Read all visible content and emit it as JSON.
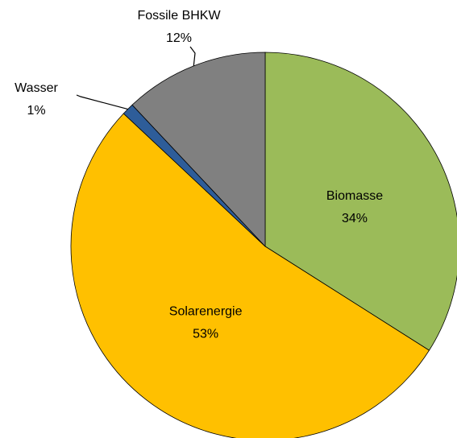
{
  "chart_data": {
    "type": "pie",
    "categories": [
      "Biomasse",
      "Solarenergie",
      "Wasser",
      "Fossile BHKW"
    ],
    "values": [
      34,
      53,
      1,
      12
    ],
    "value_labels": [
      "34%",
      "53%",
      "1%",
      "12%"
    ],
    "colors": [
      "#9bbb59",
      "#ffc000",
      "#2e5d99",
      "#808080"
    ]
  }
}
